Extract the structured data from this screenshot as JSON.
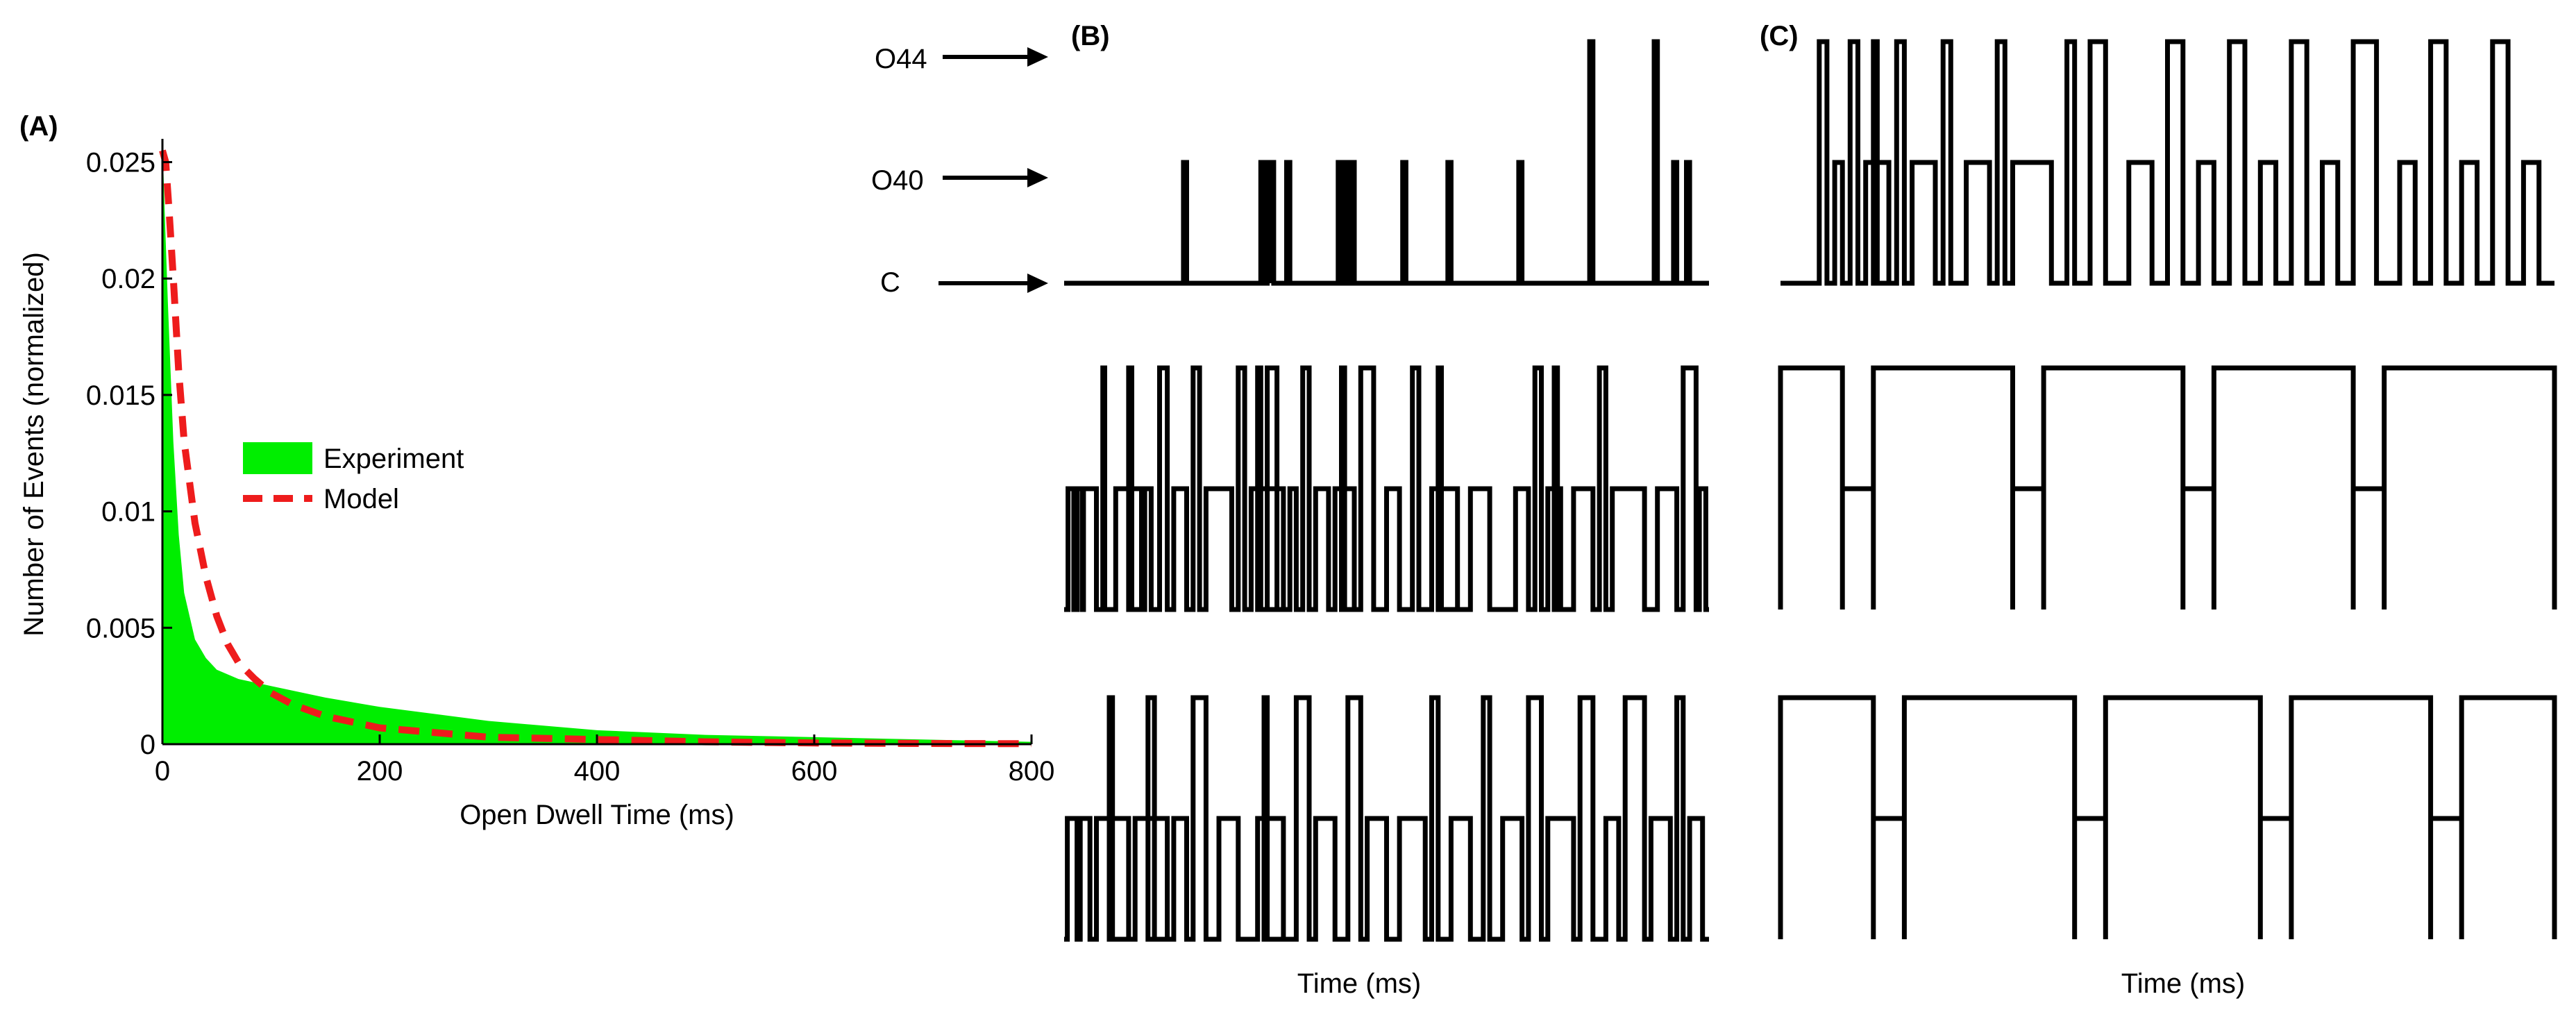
{
  "figure": {
    "panel_labels": [
      "(A)",
      "(B)",
      "(C)"
    ]
  },
  "chart_data": [
    {
      "type": "area",
      "panel": "(A)",
      "xlabel": "Open Dwell Time (ms)",
      "ylabel": "Number of Events (normalized)",
      "xlim": [
        0,
        800
      ],
      "ylim": [
        0,
        0.026
      ],
      "xticks": [
        0,
        200,
        400,
        600,
        800
      ],
      "yticks": [
        0,
        0.005,
        0.01,
        0.015,
        0.02,
        0.025
      ],
      "ytick_labels": [
        "0",
        "0.005",
        "0.01",
        "0.015",
        "0.02",
        "0.025"
      ],
      "grid": false,
      "legend_position": "center",
      "series": [
        {
          "name": "Experiment",
          "style": "filled",
          "color": "#00ee00",
          "x": [
            0,
            2,
            5,
            10,
            15,
            20,
            30,
            40,
            50,
            70,
            100,
            150,
            200,
            300,
            400,
            500,
            600,
            700,
            800
          ],
          "y": [
            0.026,
            0.023,
            0.019,
            0.013,
            0.009,
            0.0065,
            0.0045,
            0.0037,
            0.0032,
            0.0028,
            0.0025,
            0.002,
            0.0016,
            0.001,
            0.0006,
            0.0004,
            0.0003,
            0.0002,
            0.0001
          ]
        },
        {
          "name": "Model",
          "style": "dashed",
          "color": "#ee1c1c",
          "x": [
            0,
            3,
            6,
            10,
            15,
            20,
            30,
            40,
            50,
            60,
            70,
            85,
            100,
            120,
            150,
            200,
            250,
            300,
            400,
            500,
            600,
            700,
            800
          ],
          "y": [
            0.0255,
            0.025,
            0.023,
            0.02,
            0.016,
            0.013,
            0.0095,
            0.0072,
            0.0055,
            0.0043,
            0.0035,
            0.0028,
            0.0022,
            0.0017,
            0.0012,
            0.0007,
            0.0005,
            0.0003,
            0.0002,
            0.0001,
            5e-05,
            3e-05,
            2e-05
          ]
        }
      ]
    },
    {
      "type": "line",
      "panel": "(B)",
      "step": true,
      "state_labels": [
        "O44",
        "O40",
        "C"
      ],
      "state_levels": [
        2,
        1,
        0
      ],
      "xlabel": "Time (ms)",
      "traces": [
        {
          "events": [
            [
              0.185,
              0.19,
              1
            ],
            [
              0.305,
              0.31,
              1
            ],
            [
              0.315,
              0.32,
              1
            ],
            [
              0.32,
              0.325,
              1
            ],
            [
              0.345,
              0.35,
              1
            ],
            [
              0.425,
              0.43,
              1
            ],
            [
              0.435,
              0.44,
              1
            ],
            [
              0.445,
              0.45,
              1
            ],
            [
              0.525,
              0.53,
              1
            ],
            [
              0.595,
              0.6,
              1
            ],
            [
              0.705,
              0.71,
              1
            ],
            [
              0.815,
              0.82,
              2
            ],
            [
              0.915,
              0.92,
              2
            ],
            [
              0.945,
              0.95,
              1
            ],
            [
              0.965,
              0.97,
              1
            ]
          ]
        },
        {
          "events": [
            [
              0.006,
              0.015,
              1
            ],
            [
              0.02,
              0.028,
              1
            ],
            [
              0.03,
              0.05,
              1
            ],
            [
              0.06,
              0.063,
              2
            ],
            [
              0.08,
              0.12,
              1
            ],
            [
              0.1,
              0.105,
              2
            ],
            [
              0.125,
              0.135,
              1
            ],
            [
              0.148,
              0.16,
              2
            ],
            [
              0.17,
              0.19,
              1
            ],
            [
              0.2,
              0.21,
              2
            ],
            [
              0.22,
              0.26,
              1
            ],
            [
              0.27,
              0.28,
              2
            ],
            [
              0.29,
              0.34,
              1
            ],
            [
              0.3,
              0.305,
              2
            ],
            [
              0.315,
              0.33,
              2
            ],
            [
              0.35,
              0.36,
              1
            ],
            [
              0.37,
              0.38,
              2
            ],
            [
              0.39,
              0.41,
              1
            ],
            [
              0.42,
              0.45,
              1
            ],
            [
              0.43,
              0.435,
              2
            ],
            [
              0.46,
              0.48,
              2
            ],
            [
              0.5,
              0.52,
              1
            ],
            [
              0.54,
              0.55,
              2
            ],
            [
              0.57,
              0.61,
              1
            ],
            [
              0.58,
              0.585,
              2
            ],
            [
              0.63,
              0.66,
              1
            ],
            [
              0.7,
              0.72,
              1
            ],
            [
              0.73,
              0.74,
              2
            ],
            [
              0.75,
              0.77,
              1
            ],
            [
              0.76,
              0.765,
              2
            ],
            [
              0.79,
              0.82,
              1
            ],
            [
              0.83,
              0.84,
              2
            ],
            [
              0.85,
              0.9,
              1
            ],
            [
              0.92,
              0.95,
              1
            ],
            [
              0.96,
              0.98,
              2
            ],
            [
              0.985,
              0.995,
              1
            ]
          ]
        },
        {
          "events": [
            [
              0.005,
              0.02,
              1
            ],
            [
              0.025,
              0.04,
              1
            ],
            [
              0.05,
              0.1,
              1
            ],
            [
              0.07,
              0.075,
              2
            ],
            [
              0.11,
              0.16,
              1
            ],
            [
              0.13,
              0.14,
              2
            ],
            [
              0.17,
              0.19,
              1
            ],
            [
              0.2,
              0.22,
              2
            ],
            [
              0.24,
              0.27,
              1
            ],
            [
              0.3,
              0.34,
              1
            ],
            [
              0.31,
              0.315,
              2
            ],
            [
              0.36,
              0.38,
              2
            ],
            [
              0.39,
              0.42,
              1
            ],
            [
              0.44,
              0.46,
              2
            ],
            [
              0.47,
              0.5,
              1
            ],
            [
              0.52,
              0.56,
              1
            ],
            [
              0.57,
              0.58,
              2
            ],
            [
              0.6,
              0.63,
              1
            ],
            [
              0.65,
              0.66,
              2
            ],
            [
              0.68,
              0.71,
              1
            ],
            [
              0.72,
              0.74,
              2
            ],
            [
              0.75,
              0.79,
              1
            ],
            [
              0.8,
              0.82,
              2
            ],
            [
              0.84,
              0.86,
              1
            ],
            [
              0.87,
              0.9,
              2
            ],
            [
              0.91,
              0.94,
              1
            ],
            [
              0.95,
              0.96,
              2
            ],
            [
              0.97,
              0.99,
              1
            ]
          ]
        }
      ]
    },
    {
      "type": "line",
      "panel": "(C)",
      "step": true,
      "state_labels": [
        "O44",
        "O40",
        "C"
      ],
      "state_levels": [
        2,
        1,
        0
      ],
      "xlabel": "Time (ms)",
      "traces": [
        {
          "events": [
            [
              0.05,
              0.06,
              2
            ],
            [
              0.07,
              0.08,
              1
            ],
            [
              0.09,
              0.1,
              2
            ],
            [
              0.11,
              0.14,
              1
            ],
            [
              0.12,
              0.125,
              2
            ],
            [
              0.15,
              0.16,
              2
            ],
            [
              0.17,
              0.2,
              1
            ],
            [
              0.21,
              0.22,
              2
            ],
            [
              0.24,
              0.27,
              1
            ],
            [
              0.28,
              0.29,
              2
            ],
            [
              0.3,
              0.35,
              1
            ],
            [
              0.37,
              0.38,
              2
            ],
            [
              0.4,
              0.42,
              2
            ],
            [
              0.45,
              0.48,
              1
            ],
            [
              0.5,
              0.52,
              2
            ],
            [
              0.54,
              0.56,
              1
            ],
            [
              0.58,
              0.6,
              2
            ],
            [
              0.62,
              0.64,
              1
            ],
            [
              0.66,
              0.68,
              2
            ],
            [
              0.7,
              0.72,
              1
            ],
            [
              0.74,
              0.77,
              2
            ],
            [
              0.8,
              0.82,
              1
            ],
            [
              0.84,
              0.86,
              2
            ],
            [
              0.88,
              0.9,
              1
            ],
            [
              0.92,
              0.94,
              2
            ],
            [
              0.96,
              0.98,
              1
            ]
          ]
        },
        {
          "events": [
            [
              0.0,
              0.08,
              2
            ],
            [
              0.08,
              0.12,
              1
            ],
            [
              0.12,
              0.3,
              2
            ],
            [
              0.3,
              0.34,
              1
            ],
            [
              0.34,
              0.52,
              2
            ],
            [
              0.52,
              0.56,
              1
            ],
            [
              0.56,
              0.74,
              2
            ],
            [
              0.74,
              0.78,
              1
            ],
            [
              0.78,
              1.0,
              2
            ]
          ]
        },
        {
          "events": [
            [
              0.0,
              0.12,
              2
            ],
            [
              0.12,
              0.16,
              1
            ],
            [
              0.16,
              0.38,
              2
            ],
            [
              0.38,
              0.42,
              1
            ],
            [
              0.42,
              0.62,
              2
            ],
            [
              0.62,
              0.66,
              1
            ],
            [
              0.66,
              0.84,
              2
            ],
            [
              0.84,
              0.88,
              1
            ],
            [
              0.88,
              1.0,
              2
            ]
          ]
        }
      ]
    }
  ]
}
